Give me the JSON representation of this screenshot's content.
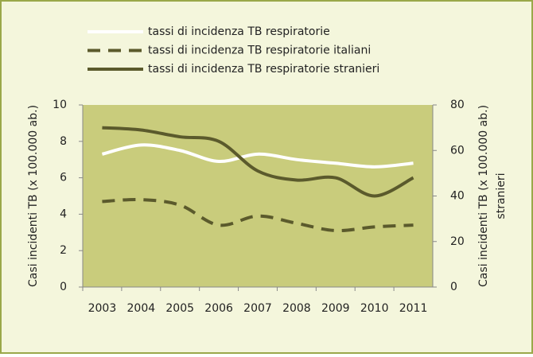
{
  "chart_data": {
    "type": "line",
    "categories": [
      "2003",
      "2004",
      "2005",
      "2006",
      "2007",
      "2008",
      "2009",
      "2010",
      "2011"
    ],
    "series": [
      {
        "name": "tassi di incidenza TB respiratorie",
        "color": "#ffffff",
        "dash": false,
        "axis": "y",
        "values": [
          7.3,
          7.8,
          7.5,
          6.9,
          7.3,
          7.0,
          6.8,
          6.6,
          6.8
        ]
      },
      {
        "name": "tassi di incidenza TB respiratorie italiani",
        "color": "#5b5a2c",
        "dash": true,
        "axis": "y",
        "values": [
          4.7,
          4.8,
          4.5,
          3.4,
          3.9,
          3.5,
          3.1,
          3.3,
          3.4
        ]
      },
      {
        "name": "tassi di incidenza TB respiratorie stranieri",
        "color": "#5b5a2c",
        "dash": false,
        "axis": "y2",
        "values": [
          70,
          69,
          66,
          64,
          51,
          47,
          48,
          40,
          48
        ]
      }
    ],
    "ylabel": "Casi incidenti TB (x 100.000 ab.)",
    "y2label": [
      "Casi incidenti TB (x 100.000 ab.)",
      "stranieri"
    ],
    "ylim": [
      0,
      10
    ],
    "yticks": [
      0,
      2,
      4,
      6,
      8,
      10
    ],
    "y2lim": [
      0,
      80
    ],
    "y2ticks": [
      0,
      20,
      40,
      60,
      80
    ],
    "plot_color": "#c9cc7c",
    "legend": "top"
  }
}
